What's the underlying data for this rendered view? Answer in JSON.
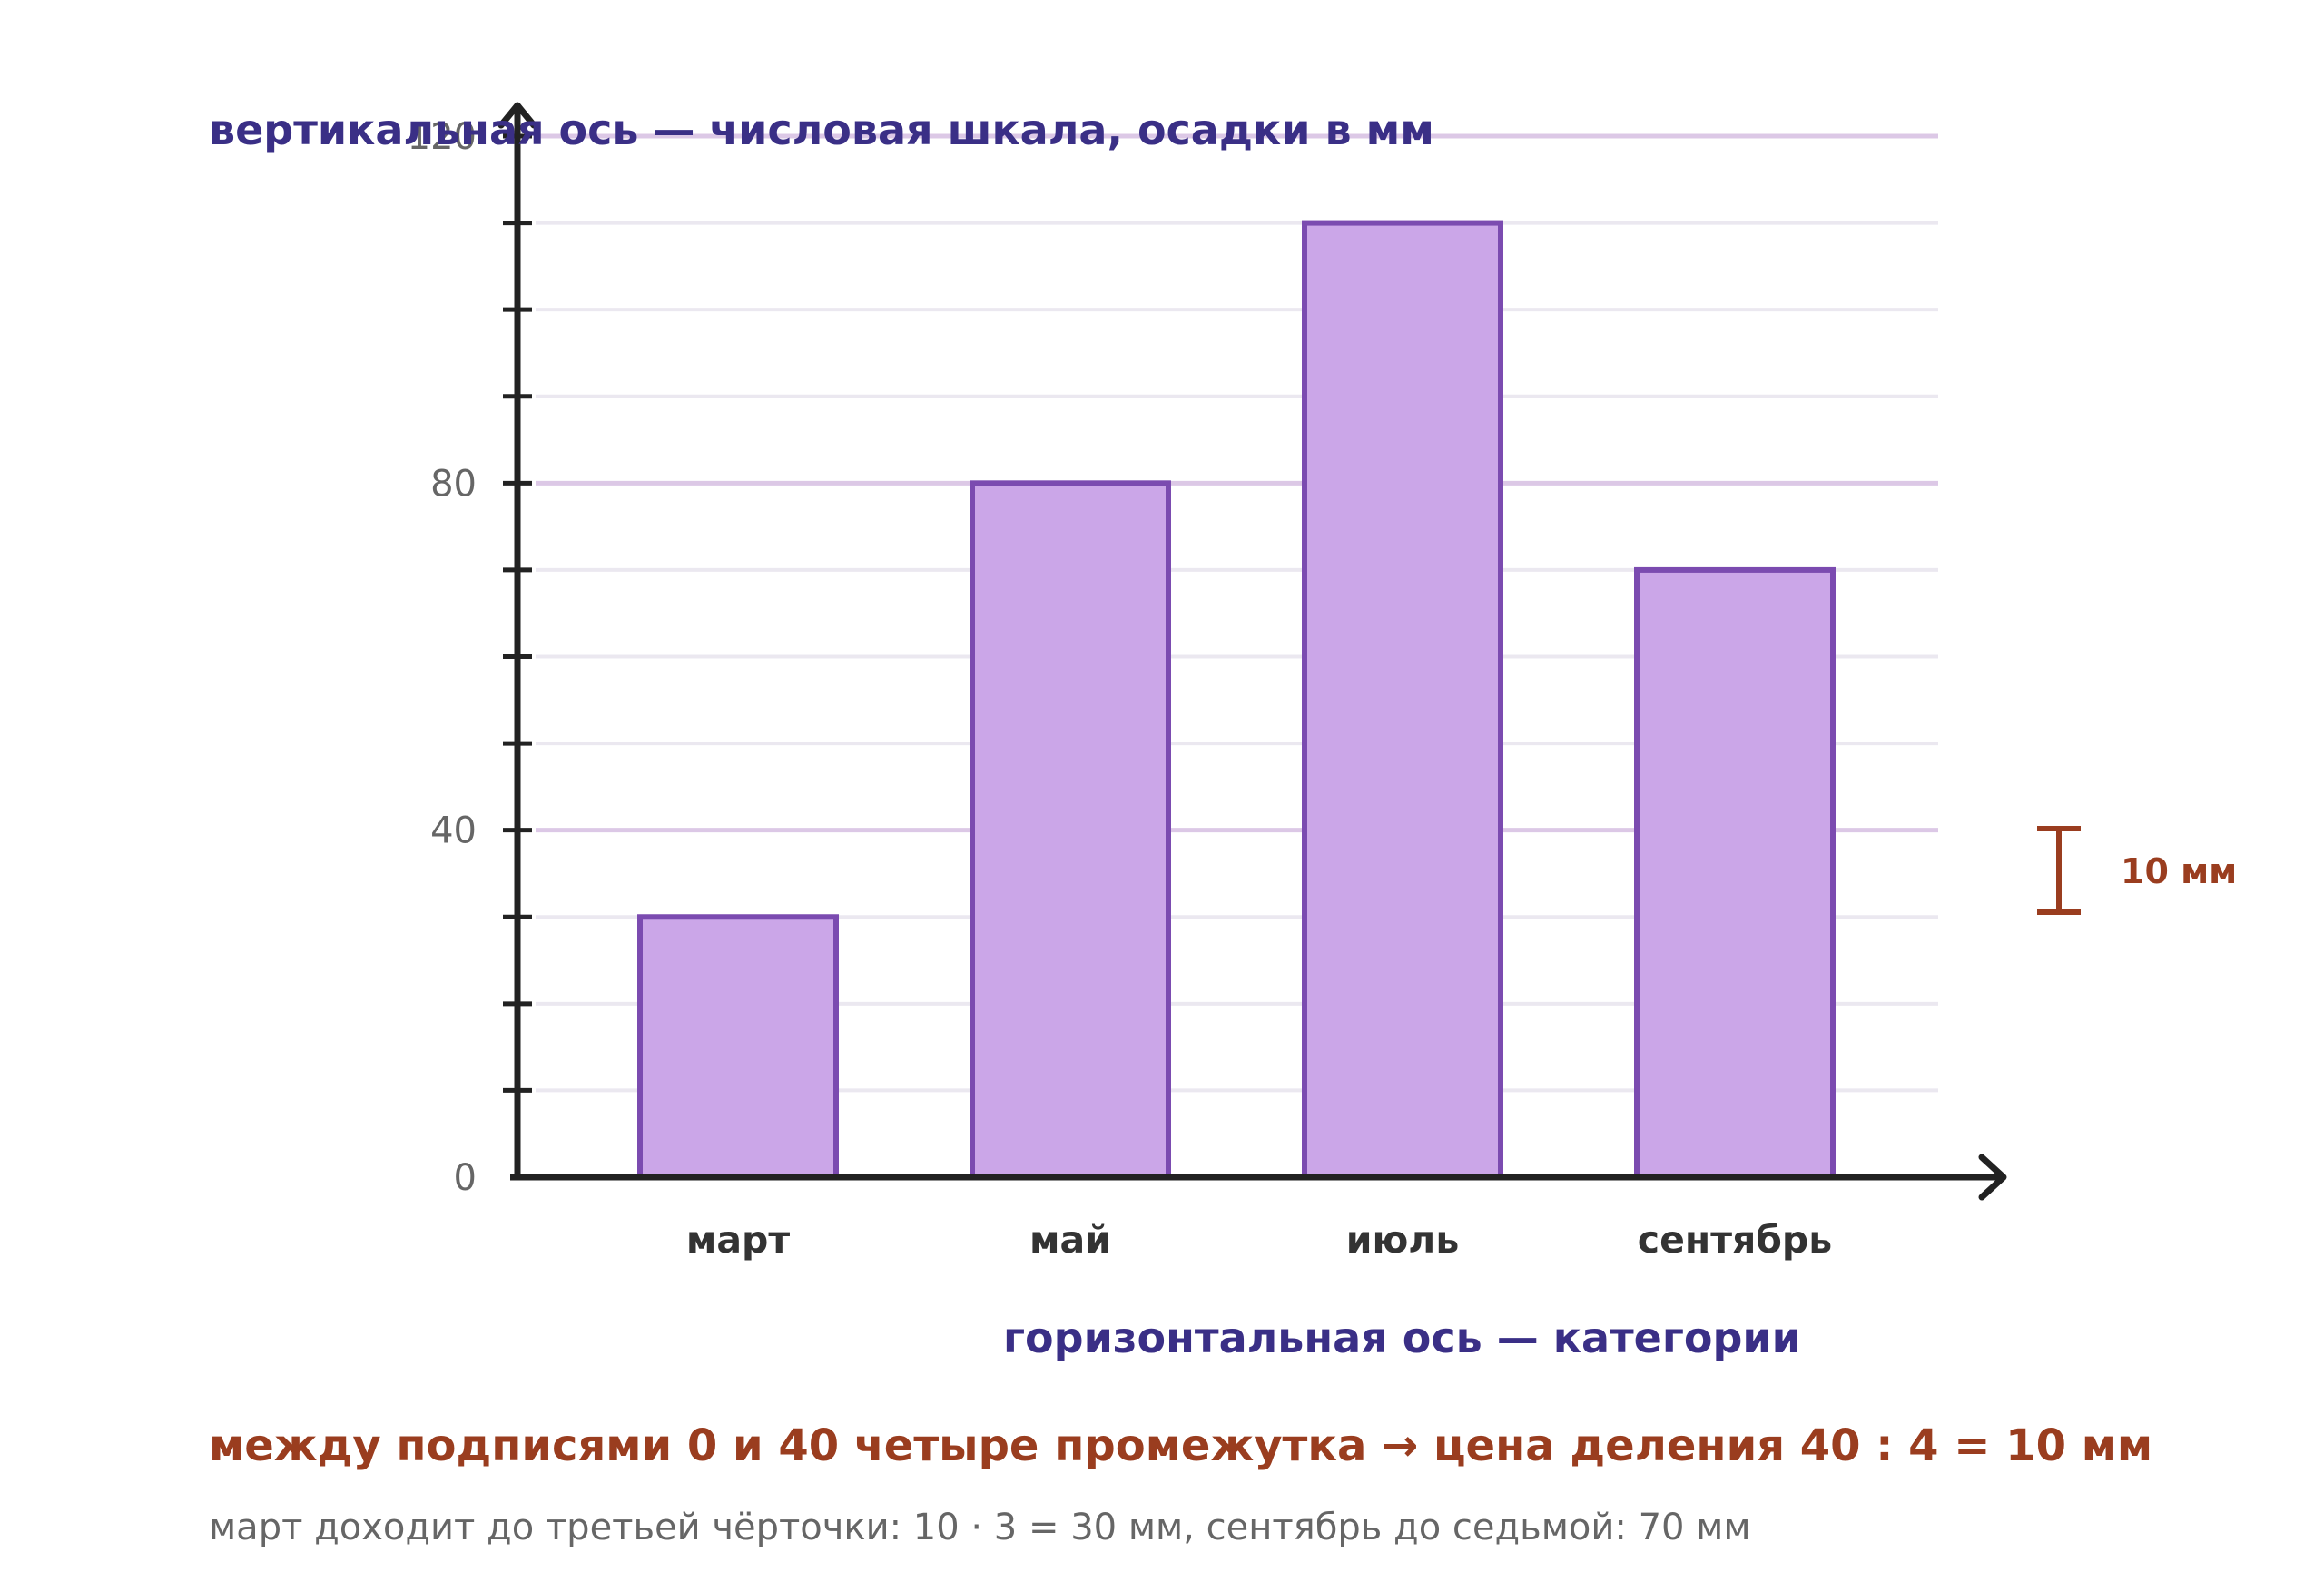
{
  "chart_data": {
    "type": "bar",
    "categories": [
      "март",
      "май",
      "июль",
      "сентябрь"
    ],
    "values": [
      30,
      80,
      110,
      70
    ],
    "ylabel": "вертикальная ось — числовая шкала, осадки в мм",
    "xlabel": "горизонтальная ось — категории",
    "ylim": [
      0,
      120
    ],
    "yticks": [
      0,
      40,
      80,
      120
    ],
    "ytick_labels": [
      "0",
      "40",
      "80",
      "120"
    ],
    "minor_tick_step": 10,
    "grid": true,
    "scale_note": "10 мм",
    "colors": {
      "bar_fill": "#cba6e8",
      "bar_stroke": "#7b4bb0",
      "major_grid": "#dcc8e6",
      "minor_grid": "#ebe8f0",
      "axis": "#222222",
      "caption": "#3a2f86",
      "accent": "#9a3d1f"
    }
  },
  "explanation": {
    "main": "между подписями 0 и 40 четыре промежутка → цена деления 40 : 4 = 10 мм",
    "sub": "март доходит до третьей чёрточки: 10 · 3 = 30 мм, сентябрь до седьмой: 70 мм"
  }
}
